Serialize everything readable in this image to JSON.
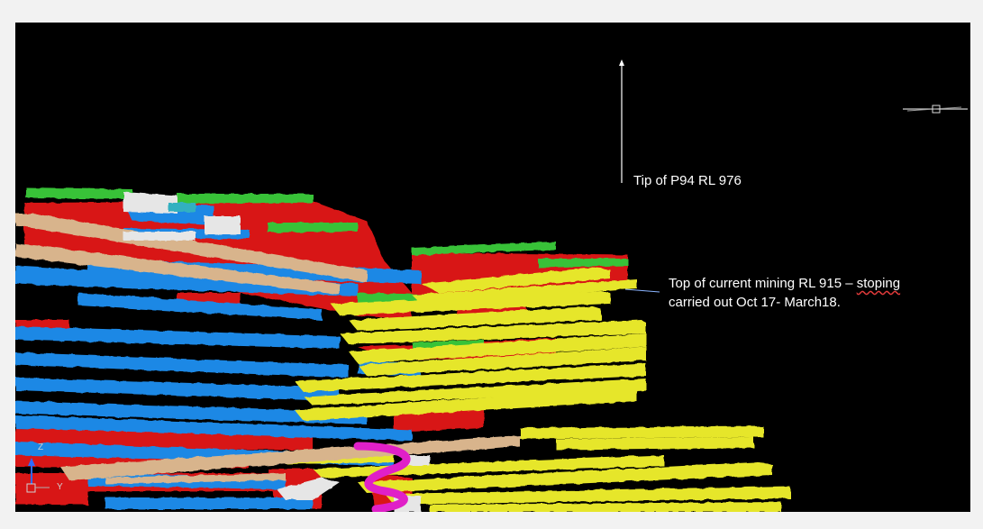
{
  "annotations": {
    "tip_label": "Tip of P94 RL 976",
    "top_label_line1_prefix": "Top of current mining RL 915 – ",
    "top_label_line1_marked": "stoping",
    "top_label_line2": "carried out Oct 17- March18."
  },
  "axis_triad": {
    "z_label": "Z",
    "y_label": "Y"
  },
  "colors": {
    "background": "#000000",
    "frame": "#f2f2f2",
    "red_stopes": "#d81414",
    "blue_levels": "#1e88e5",
    "yellow_levels": "#e6e62a",
    "green_caps": "#38c238",
    "tan_decline": "#d8b48c",
    "magenta_ramp": "#e020c8",
    "white_ramp": "#e6e6e6",
    "text": "#ffffff"
  }
}
